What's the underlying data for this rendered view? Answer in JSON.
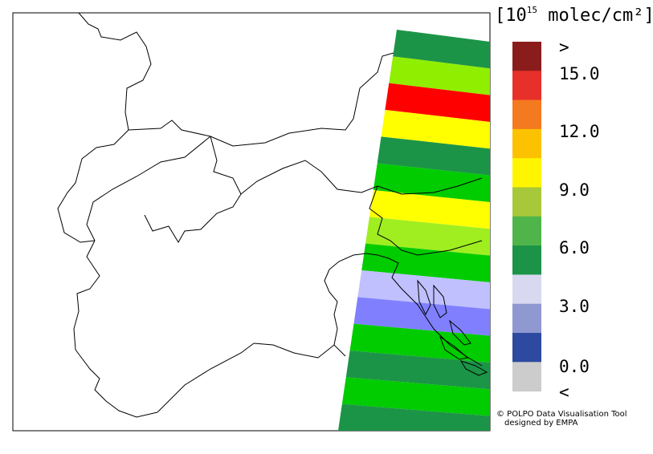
{
  "legend": {
    "unit_open": "[10",
    "unit_exp": "15",
    "unit_close": " molec/cm²]",
    "over_symbol": ">",
    "under_symbol": "<",
    "tick_labels": [
      "15.0",
      "12.0",
      "9.0",
      "6.0",
      "3.0",
      "0.0"
    ],
    "colors": [
      "#8b1c1c",
      "#e8302a",
      "#f47a20",
      "#fcc200",
      "#fff500",
      "#a6c839",
      "#4fb54a",
      "#1c9447",
      "#d8d8f0",
      "#8f98d0",
      "#2d4aa0",
      "#cccccc"
    ]
  },
  "credit": {
    "line1": "© POLPO Data Visualisation Tool",
    "line2": "designed by EMPA"
  },
  "swath": {
    "bands": [
      {
        "color": "#1c9447"
      },
      {
        "color": "#90ee00"
      },
      {
        "color": "#ff0000"
      },
      {
        "color": "#ffff00"
      },
      {
        "color": "#1c9447"
      },
      {
        "color": "#00cc00"
      },
      {
        "color": "#ffff00"
      },
      {
        "color": "#a0ee20"
      },
      {
        "color": "#00cc00"
      },
      {
        "color": "#c0c0ff"
      },
      {
        "color": "#8080ff"
      },
      {
        "color": "#00cc00"
      },
      {
        "color": "#1c9447"
      },
      {
        "color": "#00cc00"
      },
      {
        "color": "#1c9447"
      }
    ]
  }
}
